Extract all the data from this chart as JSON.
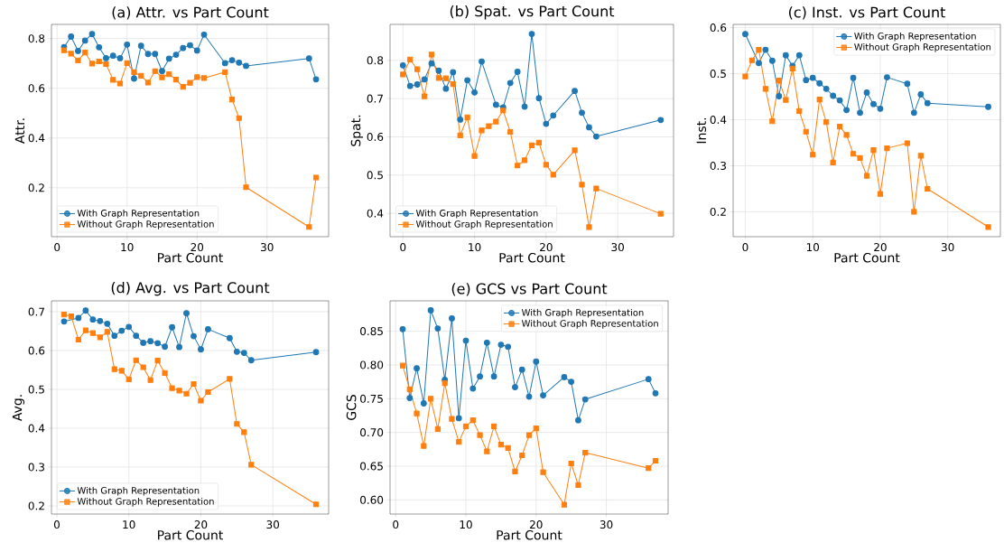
{
  "chart_data": [
    {
      "type": "line",
      "title": "(a) Attr. vs Part Count",
      "xlabel": "Part Count",
      "ylabel": "Attr.",
      "x": [
        1,
        2,
        3,
        4,
        5,
        6,
        7,
        8,
        9,
        10,
        11,
        12,
        13,
        14,
        15,
        16,
        17,
        18,
        19,
        20,
        21,
        24,
        25,
        26,
        27,
        36,
        37
      ],
      "series": [
        {
          "name": "With Graph Representation",
          "color": "#1f77b4",
          "marker": "circle",
          "values": [
            0.766,
            0.808,
            0.75,
            0.792,
            0.818,
            0.765,
            0.721,
            0.731,
            0.721,
            0.776,
            0.639,
            0.771,
            0.738,
            0.738,
            0.669,
            0.719,
            0.735,
            0.762,
            0.773,
            0.752,
            0.816,
            0.701,
            0.713,
            0.703,
            0.69,
            0.72,
            0.636
          ]
        },
        {
          "name": "Without Graph Representation",
          "color": "#ff7f0e",
          "marker": "square",
          "values": [
            0.753,
            0.739,
            0.712,
            0.744,
            0.699,
            0.708,
            0.697,
            0.634,
            0.619,
            0.701,
            0.665,
            0.65,
            0.623,
            0.669,
            0.644,
            0.657,
            0.635,
            0.606,
            0.622,
            0.645,
            0.641,
            0.665,
            0.555,
            0.48,
            0.202,
            0.042,
            0.241
          ]
        }
      ],
      "xlim": [
        -0.8,
        38.8
      ],
      "ylim": [
        0.003,
        0.857
      ],
      "xticks": [
        0,
        10,
        20,
        30
      ],
      "yticks": [
        0.2,
        0.4,
        0.6,
        0.8
      ],
      "grid": true,
      "legend": "bottom left",
      "line_style": "solid"
    },
    {
      "type": "line",
      "title": "(b) Spat. vs Part Count",
      "xlabel": "Part Count",
      "ylabel": "Spat.",
      "x": [
        0,
        1,
        2,
        3,
        4,
        5,
        6,
        7,
        8,
        9,
        10,
        11,
        12,
        13,
        14,
        15,
        16,
        17,
        18,
        19,
        20,
        21,
        24,
        25,
        26,
        27,
        36
      ],
      "series": [
        {
          "name": "With Graph Representation",
          "color": "#1f77b4",
          "marker": "circle",
          "values": [
            0.787,
            0.733,
            0.737,
            0.75,
            0.792,
            0.773,
            0.726,
            0.769,
            0.645,
            0.748,
            0.716,
            0.797,
            null,
            0.684,
            0.677,
            0.741,
            0.77,
            0.679,
            0.869,
            0.701,
            0.634,
            0.656,
            0.72,
            0.663,
            0.625,
            0.601,
            0.644
          ]
        },
        {
          "name": "Without Graph Representation",
          "color": "#ff7f0e",
          "marker": "square",
          "values": [
            0.763,
            0.802,
            0.777,
            0.706,
            0.815,
            0.754,
            0.753,
            0.738,
            0.604,
            0.651,
            0.55,
            0.617,
            0.628,
            0.64,
            0.669,
            0.613,
            0.525,
            0.539,
            0.578,
            0.585,
            0.527,
            0.501,
            0.565,
            0.475,
            0.364,
            0.465,
            0.399
          ]
        }
      ],
      "xlim": [
        -1.8,
        37.8
      ],
      "ylim": [
        0.339,
        0.894
      ],
      "xticks": [
        0,
        10,
        20,
        30
      ],
      "yticks": [
        0.4,
        0.5,
        0.6,
        0.7,
        0.8
      ],
      "grid": true,
      "legend": "bottom left",
      "line_style": "solid"
    },
    {
      "type": "line",
      "title": "(c) Inst. vs Part Count",
      "xlabel": "Part Count",
      "ylabel": "Inst.",
      "x": [
        0,
        1,
        2,
        3,
        4,
        5,
        6,
        7,
        8,
        9,
        10,
        11,
        12,
        13,
        14,
        15,
        16,
        17,
        18,
        19,
        20,
        21,
        24,
        25,
        26,
        27,
        36
      ],
      "series": [
        {
          "name": "With Graph Representation",
          "color": "#1f77b4",
          "marker": "circle",
          "values": [
            0.586,
            null,
            0.523,
            0.552,
            0.528,
            0.451,
            0.54,
            0.517,
            0.54,
            0.486,
            0.491,
            0.479,
            0.467,
            0.452,
            0.442,
            0.421,
            0.491,
            0.415,
            0.459,
            0.434,
            0.424,
            0.492,
            0.478,
            0.415,
            0.455,
            0.436,
            0.428
          ]
        },
        {
          "name": "Without Graph Representation",
          "color": "#ff7f0e",
          "marker": "square",
          "values": [
            0.494,
            0.529,
            0.552,
            0.467,
            0.397,
            0.485,
            0.443,
            0.511,
            0.419,
            0.374,
            0.324,
            0.444,
            0.395,
            0.307,
            0.385,
            0.367,
            0.326,
            0.317,
            0.278,
            0.334,
            0.239,
            0.338,
            0.349,
            0.2,
            0.322,
            0.25,
            0.167
          ]
        }
      ],
      "xlim": [
        -1.8,
        37.8
      ],
      "ylim": [
        0.146,
        0.607
      ],
      "xticks": [
        0,
        10,
        20,
        30
      ],
      "yticks": [
        0.2,
        0.3,
        0.4,
        0.5,
        0.6
      ],
      "grid": true,
      "legend": "top right",
      "line_style": "solid"
    },
    {
      "type": "line",
      "title": "(d) Avg. vs Part Count",
      "xlabel": "Part Count",
      "ylabel": "Avg.",
      "x": [
        1,
        2,
        3,
        4,
        5,
        6,
        7,
        8,
        9,
        10,
        11,
        12,
        13,
        14,
        15,
        16,
        17,
        18,
        19,
        20,
        21,
        24,
        25,
        26,
        27,
        36
      ],
      "series": [
        {
          "name": "With Graph Representation",
          "color": "#1f77b4",
          "marker": "circle",
          "values": [
            0.675,
            null,
            0.684,
            0.703,
            0.68,
            0.676,
            0.669,
            0.638,
            0.651,
            0.661,
            0.638,
            0.62,
            0.624,
            0.619,
            0.61,
            0.66,
            0.609,
            0.696,
            0.637,
            0.603,
            0.655,
            0.632,
            0.597,
            0.594,
            0.575,
            0.596
          ]
        },
        {
          "name": "Without Graph Representation",
          "color": "#ff7f0e",
          "marker": "square",
          "values": [
            0.693,
            0.688,
            0.628,
            0.652,
            0.645,
            0.634,
            0.648,
            0.552,
            0.548,
            0.526,
            0.575,
            0.557,
            0.524,
            0.574,
            0.542,
            0.503,
            0.497,
            0.489,
            0.514,
            0.471,
            0.493,
            0.527,
            0.411,
            0.39,
            0.306,
            0.204
          ]
        }
      ],
      "xlim": [
        -0.75,
        37.75
      ],
      "ylim": [
        0.179,
        0.728
      ],
      "xticks": [
        0,
        10,
        20,
        30
      ],
      "yticks": [
        0.2,
        0.3,
        0.4,
        0.5,
        0.6,
        0.7
      ],
      "grid": true,
      "legend": "bottom left",
      "line_style": "solid"
    },
    {
      "type": "line",
      "title": "(e) GCS vs Part Count",
      "xlabel": "Part Count",
      "ylabel": "GCS",
      "x": [
        1,
        2,
        3,
        4,
        5,
        6,
        7,
        8,
        9,
        10,
        11,
        12,
        13,
        14,
        15,
        16,
        17,
        18,
        19,
        20,
        21,
        24,
        25,
        26,
        27,
        36,
        37
      ],
      "series": [
        {
          "name": "With Graph Representation",
          "color": "#1f77b4",
          "marker": "circle",
          "values": [
            0.853,
            0.751,
            0.795,
            0.743,
            0.881,
            0.854,
            0.778,
            0.869,
            0.721,
            0.836,
            0.765,
            0.783,
            0.833,
            0.783,
            0.83,
            0.827,
            0.767,
            0.793,
            0.753,
            0.805,
            0.755,
            0.782,
            0.775,
            0.718,
            0.749,
            0.779,
            0.758
          ]
        },
        {
          "name": "Without Graph Representation",
          "color": "#ff7f0e",
          "marker": "square",
          "values": [
            0.799,
            0.764,
            0.728,
            0.68,
            0.75,
            0.705,
            0.773,
            0.72,
            0.686,
            0.709,
            0.718,
            0.696,
            0.672,
            0.709,
            0.682,
            0.677,
            0.642,
            0.666,
            0.696,
            0.706,
            0.641,
            0.593,
            0.654,
            0.622,
            0.67,
            0.647,
            0.658
          ]
        }
      ],
      "xlim": [
        -0.8,
        38.8
      ],
      "ylim": [
        0.579,
        0.895
      ],
      "xticks": [
        0,
        10,
        20,
        30
      ],
      "yticks": [
        {
          "value": 0.6,
          "label": "0.60"
        },
        {
          "value": 0.65,
          "label": "0.65"
        },
        {
          "value": 0.7,
          "label": "0.70"
        },
        {
          "value": 0.75,
          "label": "0.75"
        },
        {
          "value": 0.8,
          "label": "0.80"
        },
        {
          "value": 0.85,
          "label": "0.85"
        }
      ],
      "grid": true,
      "legend": "top right",
      "line_style": "solid"
    }
  ]
}
